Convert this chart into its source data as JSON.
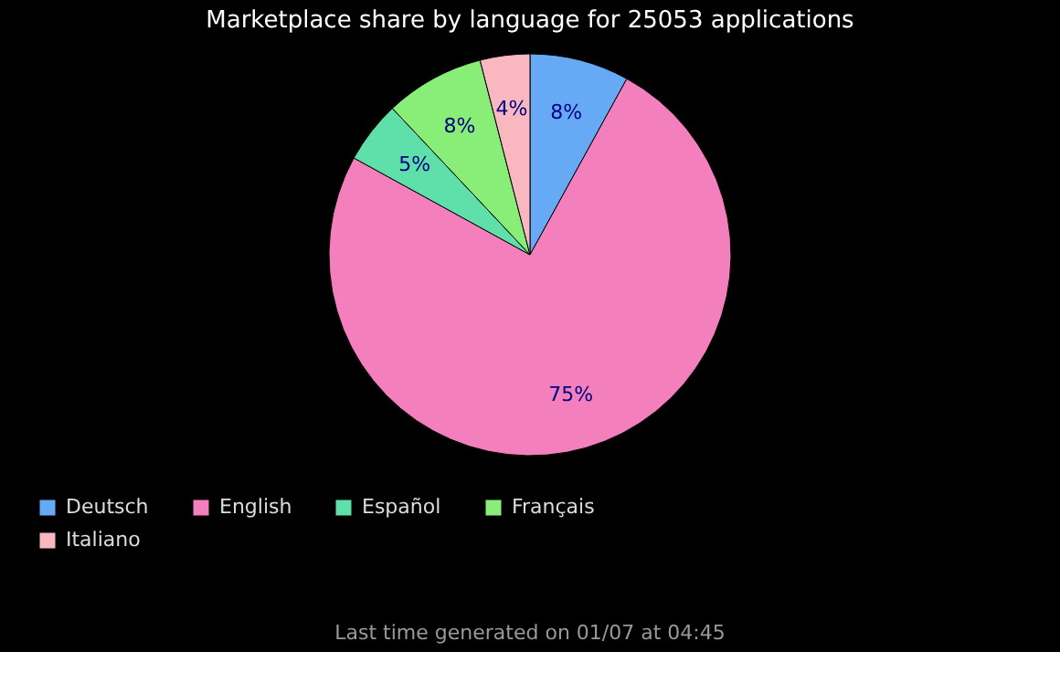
{
  "chart_data": {
    "type": "pie",
    "title": "Marketplace share by language for 25053 applications",
    "categories": [
      "Deutsch",
      "English",
      "Español",
      "Français",
      "Italiano"
    ],
    "values": [
      8,
      75,
      5,
      8,
      4
    ],
    "colors": [
      "#66aaf5",
      "#f47fbd",
      "#5fe0aa",
      "#88ee77",
      "#f9b8c0"
    ],
    "value_labels": [
      "8%",
      "75%",
      "5%",
      "8%",
      "4%"
    ],
    "legend": "bottom left",
    "annotations": [
      "Last time generated on 01/07 at 04:45"
    ]
  }
}
